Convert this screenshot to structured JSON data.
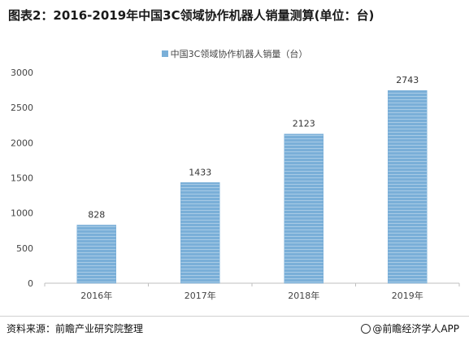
{
  "title": "图表2：2016-2019年中国3C领域协作机器人销量测算(单位：台)",
  "source_label": "资料来源：前瞻产业研究院整理",
  "brand_label": "@前瞻经济学人APP",
  "colors": {
    "bar": "#7aafd8",
    "bar_stripe": "#ffffff",
    "axis": "#bfbfbf",
    "text": "#444444"
  },
  "chart_data": {
    "type": "bar",
    "categories": [
      "2016年",
      "2017年",
      "2018年",
      "2019年"
    ],
    "series": [
      {
        "name": "中国3C领域协作机器人销量（台）",
        "values": [
          828,
          1433,
          2123,
          2743
        ]
      }
    ],
    "yticks": [
      0,
      500,
      1000,
      1500,
      2000,
      2500,
      3000
    ],
    "ylim": [
      0,
      3000
    ],
    "grid": false,
    "legend": "top-center",
    "data_labels": true
  }
}
